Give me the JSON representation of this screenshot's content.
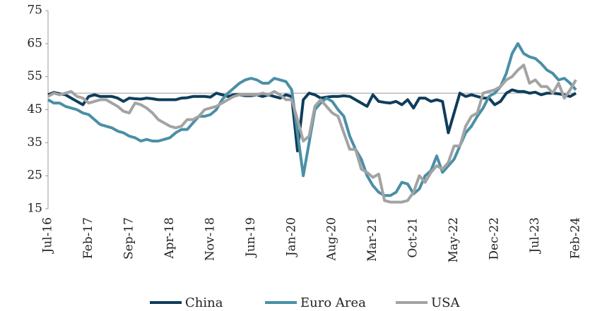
{
  "chart_data": {
    "type": "line",
    "categories": [
      "Jul-16",
      null,
      null,
      null,
      null,
      null,
      null,
      "Feb-17",
      null,
      null,
      null,
      null,
      null,
      null,
      "Sep-17",
      null,
      null,
      null,
      null,
      null,
      null,
      "Apr-18",
      null,
      null,
      null,
      null,
      null,
      null,
      "Nov-18",
      null,
      null,
      null,
      null,
      null,
      null,
      "Jun-19",
      null,
      null,
      null,
      null,
      null,
      null,
      "Jan-20",
      null,
      null,
      null,
      null,
      null,
      null,
      "Aug-20",
      null,
      null,
      null,
      null,
      null,
      null,
      "Mar-21",
      null,
      null,
      null,
      null,
      null,
      null,
      "Oct-21",
      null,
      null,
      null,
      null,
      null,
      null,
      "May-22",
      null,
      null,
      null,
      null,
      null,
      null,
      "Dec-22",
      null,
      null,
      null,
      null,
      null,
      null,
      "Jul-23",
      null,
      null,
      null,
      null,
      null,
      null,
      "Feb-24"
    ],
    "series": [
      {
        "name": "China",
        "color": "#0e3d5c",
        "values": [
          49.5,
          50.2,
          49.8,
          49.5,
          48.5,
          47.5,
          46.5,
          49,
          49.5,
          49,
          49,
          49,
          48.5,
          47.5,
          48.5,
          48.3,
          48.2,
          48.5,
          48.3,
          48,
          48,
          48,
          48,
          48.5,
          48.6,
          49,
          49,
          49,
          48.8,
          50,
          49.5,
          49,
          49.5,
          49.5,
          49.2,
          49.2,
          49.5,
          49,
          49.5,
          49,
          48.5,
          49.5,
          49,
          32.5,
          48,
          50,
          49.5,
          48.5,
          48.8,
          49,
          49,
          49.2,
          49,
          48,
          47,
          46,
          49.5,
          47.5,
          47.2,
          47,
          47.5,
          46.5,
          48,
          45.5,
          48.5,
          48.5,
          47.5,
          48,
          47.5,
          38,
          44,
          50,
          49,
          49.5,
          49,
          48.5,
          48.5,
          46.5,
          47.5,
          50,
          51,
          50.5,
          50.5,
          50,
          50.3,
          49.5,
          50,
          50,
          49.8,
          49.5,
          49,
          50
        ]
      },
      {
        "name": "Euro Area",
        "color": "#4a8fa6",
        "values": [
          48,
          47,
          47,
          46,
          45.5,
          45,
          44,
          43.5,
          42,
          40.5,
          40,
          39.5,
          38.5,
          38,
          37,
          36.5,
          35.5,
          36,
          35.5,
          35.5,
          36,
          36.5,
          38,
          39,
          39,
          41,
          43,
          43,
          43.5,
          45,
          48,
          50,
          51.5,
          53,
          54,
          54.5,
          54,
          53,
          53,
          54.5,
          54,
          53.5,
          51,
          38,
          25,
          35,
          45,
          47,
          48.5,
          47.5,
          45,
          43,
          37,
          33,
          30,
          25,
          22,
          20,
          19,
          19,
          20,
          23,
          22.5,
          19.5,
          21,
          25,
          26.5,
          31,
          26,
          28,
          30,
          34,
          38,
          40,
          43,
          45.5,
          49,
          50,
          52,
          56,
          62,
          65,
          62,
          61,
          60.5,
          59,
          57,
          56,
          54,
          54.5,
          53,
          51
        ]
      },
      {
        "name": "USA",
        "color": "#a3a3a3",
        "values": [
          49,
          50,
          49.5,
          50,
          50.5,
          49,
          48.5,
          47,
          47.5,
          48,
          48,
          47,
          46,
          44.5,
          44,
          47,
          46.5,
          45.5,
          44,
          42,
          41,
          40,
          39.5,
          40,
          42,
          42,
          43,
          45,
          45.5,
          46,
          47,
          48,
          49,
          49.5,
          49.5,
          49.5,
          49.5,
          50,
          49.5,
          50.5,
          49.5,
          48,
          48,
          42,
          35.5,
          37,
          46,
          48,
          46,
          44,
          43,
          38,
          33,
          33,
          27,
          26,
          24.5,
          25.5,
          17.5,
          17,
          17,
          17,
          17.5,
          20,
          25,
          23,
          26,
          28,
          27,
          29,
          34,
          34,
          40,
          43,
          44,
          50,
          50.5,
          51,
          52,
          54,
          55,
          57,
          58.5,
          53,
          54,
          52,
          52,
          50,
          53,
          48.5,
          51,
          54
        ]
      }
    ],
    "ylim": [
      15,
      75
    ],
    "yticks": [
      15,
      25,
      35,
      45,
      55,
      65,
      75
    ],
    "x_axis_crosses": 50,
    "grid": false,
    "legend": "bottom"
  }
}
